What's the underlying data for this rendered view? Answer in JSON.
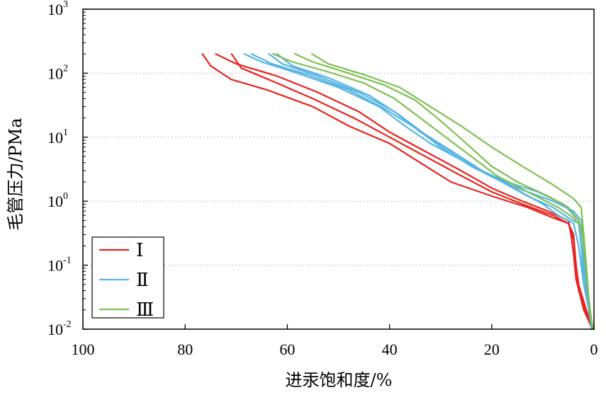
{
  "chart_data": {
    "type": "line",
    "xlabel": "进汞饱和度/%",
    "ylabel": "毛管压力/PMa",
    "x_reversed": true,
    "xlim": [
      100,
      0
    ],
    "ylim": [
      0.01,
      1000
    ],
    "y_scale": "log",
    "x_ticks": [
      100,
      80,
      60,
      40,
      20,
      0
    ],
    "y_ticks": [
      {
        "value": 0.01,
        "base": "10",
        "exp": "-2"
      },
      {
        "value": 0.1,
        "base": "10",
        "exp": "-1"
      },
      {
        "value": 1,
        "base": "10",
        "exp": "0"
      },
      {
        "value": 10,
        "base": "10",
        "exp": "1"
      },
      {
        "value": 100,
        "base": "10",
        "exp": "2"
      },
      {
        "value": 1000,
        "base": "10",
        "exp": "3"
      }
    ],
    "grid": "horizontal dotted",
    "legend_position": "bottom-left",
    "legend": [
      {
        "label": "Ⅰ",
        "color": "#e8231d"
      },
      {
        "label": "Ⅱ",
        "color": "#56b4e4"
      },
      {
        "label": "Ⅲ",
        "color": "#7dc050"
      }
    ],
    "series": [
      {
        "group": "Ⅰ",
        "color": "#e8231d",
        "points": [
          [
            76.6,
            200
          ],
          [
            75,
            130
          ],
          [
            71,
            80
          ],
          [
            64,
            55
          ],
          [
            55,
            30
          ],
          [
            48,
            15
          ],
          [
            40,
            8
          ],
          [
            34,
            4
          ],
          [
            28,
            2
          ],
          [
            20,
            1.2
          ],
          [
            13,
            0.8
          ],
          [
            8,
            0.55
          ],
          [
            5,
            0.45
          ],
          [
            4,
            0.3
          ],
          [
            3.5,
            0.1
          ],
          [
            3,
            0.05
          ],
          [
            1.5,
            0.02
          ],
          [
            0,
            0.01
          ]
        ]
      },
      {
        "group": "Ⅰ",
        "color": "#e8231d",
        "points": [
          [
            74,
            200
          ],
          [
            70,
            140
          ],
          [
            62,
            90
          ],
          [
            54,
            50
          ],
          [
            46,
            25
          ],
          [
            40,
            12
          ],
          [
            33,
            6
          ],
          [
            26,
            3
          ],
          [
            20,
            1.6
          ],
          [
            14,
            1.0
          ],
          [
            9,
            0.7
          ],
          [
            5,
            0.5
          ],
          [
            4.5,
            0.3
          ],
          [
            4,
            0.15
          ],
          [
            3.5,
            0.06
          ],
          [
            2,
            0.02
          ],
          [
            0.3,
            0.01
          ]
        ]
      },
      {
        "group": "Ⅰ",
        "color": "#e8231d",
        "points": [
          [
            70.9,
            200
          ],
          [
            69,
            120
          ],
          [
            62,
            70
          ],
          [
            55,
            40
          ],
          [
            47,
            20
          ],
          [
            40,
            10
          ],
          [
            33,
            5
          ],
          [
            26,
            2.5
          ],
          [
            20,
            1.4
          ],
          [
            14,
            0.9
          ],
          [
            8,
            0.6
          ],
          [
            5,
            0.45
          ],
          [
            4,
            0.25
          ],
          [
            3.5,
            0.1
          ],
          [
            3,
            0.04
          ],
          [
            1.2,
            0.015
          ],
          [
            0.2,
            0.01
          ]
        ]
      },
      {
        "group": "Ⅱ",
        "color": "#56b4e4",
        "points": [
          [
            68.4,
            200
          ],
          [
            65,
            150
          ],
          [
            58,
            100
          ],
          [
            50,
            60
          ],
          [
            42,
            30
          ],
          [
            37,
            15
          ],
          [
            32,
            8
          ],
          [
            25,
            4
          ],
          [
            20,
            2.5
          ],
          [
            15,
            1.5
          ],
          [
            10,
            0.9
          ],
          [
            7,
            0.6
          ],
          [
            4,
            0.45
          ],
          [
            3,
            0.2
          ],
          [
            2.5,
            0.1
          ],
          [
            2,
            0.05
          ],
          [
            1,
            0.02
          ],
          [
            0.3,
            0.01
          ]
        ]
      },
      {
        "group": "Ⅱ",
        "color": "#56b4e4",
        "points": [
          [
            67,
            200
          ],
          [
            63,
            140
          ],
          [
            56,
            95
          ],
          [
            48,
            55
          ],
          [
            41,
            28
          ],
          [
            35,
            14
          ],
          [
            30,
            7
          ],
          [
            24,
            3.5
          ],
          [
            18,
            2.0
          ],
          [
            13,
            1.2
          ],
          [
            8,
            0.8
          ],
          [
            5,
            0.55
          ],
          [
            3,
            0.45
          ],
          [
            2.5,
            0.2
          ],
          [
            2,
            0.06
          ],
          [
            1,
            0.02
          ],
          [
            0.2,
            0.01
          ]
        ]
      },
      {
        "group": "Ⅱ",
        "color": "#56b4e4",
        "points": [
          [
            63.6,
            200
          ],
          [
            61,
            140
          ],
          [
            54,
            90
          ],
          [
            46,
            50
          ],
          [
            39,
            25
          ],
          [
            34,
            12
          ],
          [
            28,
            6
          ],
          [
            22,
            3
          ],
          [
            17,
            2
          ],
          [
            11,
            1.4
          ],
          [
            6,
            0.9
          ],
          [
            3,
            0.5
          ],
          [
            2.5,
            0.25
          ],
          [
            2,
            0.1
          ],
          [
            1.2,
            0.03
          ],
          [
            0.5,
            0.01
          ]
        ]
      },
      {
        "group": "Ⅱ",
        "color": "#56b4e4",
        "points": [
          [
            62,
            200
          ],
          [
            59,
            130
          ],
          [
            52,
            85
          ],
          [
            44,
            45
          ],
          [
            38,
            22
          ],
          [
            33,
            11
          ],
          [
            27,
            5.5
          ],
          [
            21,
            2.7
          ],
          [
            15,
            1.6
          ],
          [
            8,
            1.0
          ],
          [
            4,
            0.7
          ],
          [
            2.5,
            0.5
          ],
          [
            2.2,
            0.3
          ],
          [
            1.8,
            0.1
          ],
          [
            1,
            0.03
          ],
          [
            0.3,
            0.01
          ]
        ]
      },
      {
        "group": "Ⅲ",
        "color": "#7dc050",
        "points": [
          [
            62.8,
            200
          ],
          [
            59,
            150
          ],
          [
            52,
            105
          ],
          [
            45,
            70
          ],
          [
            39,
            40
          ],
          [
            34,
            20
          ],
          [
            29,
            10
          ],
          [
            24,
            5
          ],
          [
            19,
            2.5
          ],
          [
            13,
            1.4
          ],
          [
            7,
            0.8
          ],
          [
            4,
            0.55
          ],
          [
            2.5,
            0.4
          ],
          [
            2,
            0.2
          ],
          [
            1.5,
            0.08
          ],
          [
            0.8,
            0.02
          ],
          [
            0.2,
            0.01
          ]
        ]
      },
      {
        "group": "Ⅲ",
        "color": "#7dc050",
        "points": [
          [
            58.5,
            200
          ],
          [
            55,
            150
          ],
          [
            48,
            100
          ],
          [
            41,
            65
          ],
          [
            35,
            38
          ],
          [
            30,
            18
          ],
          [
            25,
            8
          ],
          [
            20,
            3.5
          ],
          [
            15,
            2
          ],
          [
            9,
            1.2
          ],
          [
            5,
            0.8
          ],
          [
            3,
            0.5
          ],
          [
            2,
            0.25
          ],
          [
            1.5,
            0.08
          ],
          [
            0.8,
            0.02
          ],
          [
            0.2,
            0.01
          ]
        ]
      },
      {
        "group": "Ⅲ",
        "color": "#7dc050",
        "points": [
          [
            55.2,
            200
          ],
          [
            52,
            140
          ],
          [
            45,
            95
          ],
          [
            38,
            60
          ],
          [
            32,
            30
          ],
          [
            26,
            15
          ],
          [
            20,
            7
          ],
          [
            14,
            3.5
          ],
          [
            8,
            1.8
          ],
          [
            4,
            1.1
          ],
          [
            2.5,
            0.8
          ],
          [
            2,
            0.3
          ],
          [
            1.5,
            0.1
          ],
          [
            1,
            0.03
          ],
          [
            0.3,
            0.01
          ]
        ]
      }
    ]
  }
}
